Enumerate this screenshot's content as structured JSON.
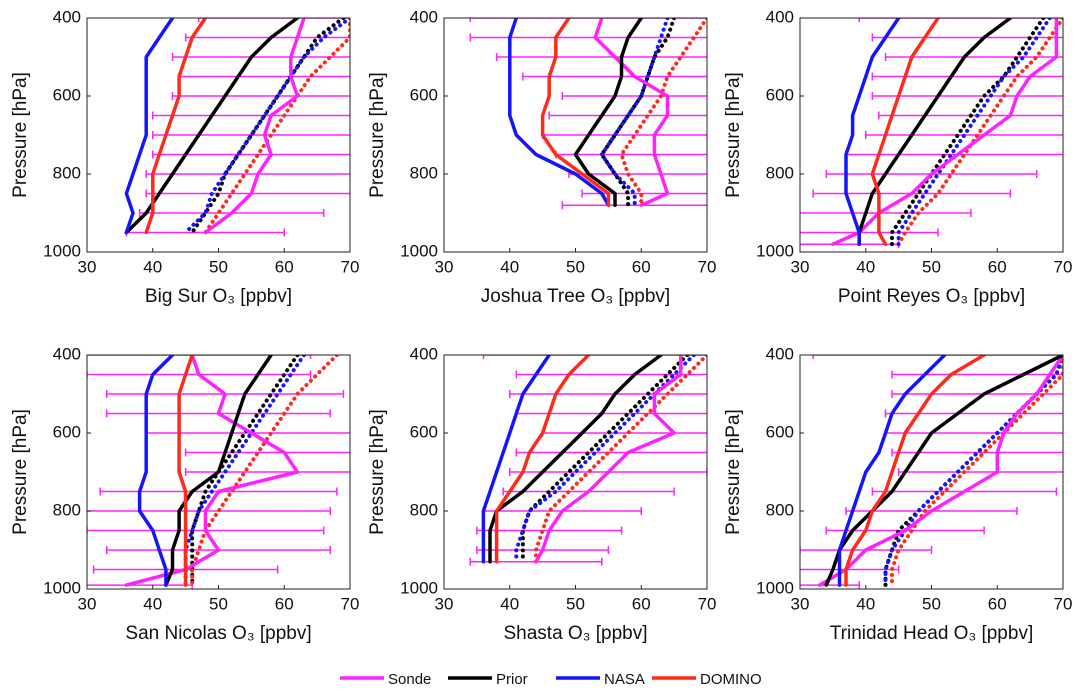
{
  "chart_data": [
    {
      "type": "line",
      "xlabel": "Big Sur O₃ [ppbv]",
      "ylabel": "Pressure [hPa]",
      "xlim": [
        30,
        70
      ],
      "ylim": [
        1000,
        400
      ],
      "xticks": [
        30,
        40,
        50,
        60,
        70
      ],
      "yticks": [
        400,
        600,
        800,
        1000
      ],
      "pressure": [
        400,
        450,
        500,
        550,
        600,
        650,
        700,
        750,
        800,
        850,
        900,
        950
      ],
      "series": [
        {
          "name": "Sonde",
          "color": "#ff22ff",
          "values": [
            63,
            62,
            61,
            61,
            62,
            58,
            57,
            58,
            56,
            55,
            52,
            48
          ],
          "errors": [
            16,
            17,
            18,
            17,
            19,
            18,
            17,
            18,
            17,
            16,
            14,
            12
          ]
        },
        {
          "name": "Prior",
          "color": "#000000",
          "values": [
            62,
            58,
            55,
            53,
            51,
            49,
            47,
            45,
            43,
            41,
            39,
            36
          ]
        },
        {
          "name": "NASA",
          "color": "#1414ff",
          "values": [
            43,
            41,
            39,
            39,
            39,
            39,
            39,
            38,
            37,
            36,
            37,
            36
          ]
        },
        {
          "name": "DOMINO",
          "color": "#ff2a1a",
          "values": [
            48,
            46,
            45,
            44,
            44,
            43,
            42,
            41,
            40,
            40,
            40,
            39
          ]
        },
        {
          "color": "#000000",
          "style": "dotted",
          "values": [
            69,
            65,
            63,
            61,
            59,
            57,
            55,
            53,
            51,
            50,
            48,
            46
          ]
        },
        {
          "color": "#1414ff",
          "style": "dotted",
          "values": [
            70,
            66,
            63,
            61,
            59,
            57,
            55,
            53,
            51,
            49,
            48,
            45
          ]
        },
        {
          "color": "#ff2a1a",
          "style": "dotted",
          "values": [
            70,
            70,
            67,
            64,
            62,
            60,
            58,
            56,
            54,
            52,
            50,
            48
          ]
        }
      ]
    },
    {
      "type": "line",
      "xlabel": "Joshua Tree O₃ [ppbv]",
      "ylabel": "Pressure [hPa]",
      "xlim": [
        30,
        70
      ],
      "ylim": [
        1000,
        400
      ],
      "xticks": [
        30,
        40,
        50,
        60,
        70
      ],
      "yticks": [
        400,
        600,
        800,
        1000
      ],
      "pressure": [
        400,
        450,
        500,
        550,
        600,
        650,
        700,
        750,
        800,
        850,
        880
      ],
      "series": [
        {
          "color": "#ff22ff",
          "values": [
            54,
            53,
            56,
            59,
            64,
            64,
            62,
            62,
            63,
            64,
            60
          ],
          "errors": [
            20,
            19,
            18,
            17,
            16,
            18,
            17,
            15,
            14,
            13,
            12
          ]
        },
        {
          "color": "#000000",
          "values": [
            60,
            58,
            57,
            57,
            56,
            54,
            52,
            50,
            52,
            56,
            56
          ]
        },
        {
          "color": "#1414ff",
          "values": [
            41,
            40,
            40,
            40,
            40,
            40,
            41,
            44,
            50,
            54,
            55
          ]
        },
        {
          "color": "#ff2a1a",
          "values": [
            49,
            47,
            47,
            46,
            46,
            45,
            45,
            47,
            51,
            55,
            55
          ]
        },
        {
          "color": "#000000",
          "style": "dotted",
          "values": [
            65,
            64,
            62,
            61,
            60,
            58,
            56,
            54,
            56,
            58,
            58
          ]
        },
        {
          "color": "#1414ff",
          "style": "dotted",
          "values": [
            64,
            63,
            62,
            61,
            60,
            58,
            56,
            54,
            56,
            59,
            59
          ]
        },
        {
          "color": "#ff2a1a",
          "style": "dotted",
          "values": [
            70,
            68,
            66,
            64,
            63,
            61,
            59,
            57,
            58,
            60,
            60
          ]
        }
      ]
    },
    {
      "type": "line",
      "xlabel": "Point Reyes O₃ [ppbv]",
      "ylabel": "Pressure [hPa]",
      "xlim": [
        30,
        70
      ],
      "ylim": [
        1000,
        400
      ],
      "xticks": [
        30,
        40,
        50,
        60,
        70
      ],
      "yticks": [
        400,
        600,
        800,
        1000
      ],
      "pressure": [
        400,
        450,
        500,
        550,
        600,
        650,
        700,
        750,
        800,
        850,
        900,
        950,
        980
      ],
      "series": [
        {
          "color": "#ff22ff",
          "values": [
            69,
            69,
            69,
            65,
            63,
            62,
            58,
            54,
            50,
            47,
            42,
            39,
            35
          ],
          "errors": [
            30,
            28,
            26,
            24,
            22,
            20,
            18,
            17,
            16,
            15,
            14,
            12,
            10
          ]
        },
        {
          "color": "#000000",
          "values": [
            62,
            58,
            55,
            53,
            51,
            49,
            47,
            45,
            43,
            41,
            40,
            39,
            39
          ]
        },
        {
          "color": "#1414ff",
          "values": [
            45,
            43,
            41,
            40,
            39,
            38,
            38,
            37,
            37,
            37,
            38,
            39,
            39
          ]
        },
        {
          "color": "#ff2a1a",
          "values": [
            51,
            49,
            47,
            46,
            45,
            44,
            43,
            42,
            41,
            42,
            42,
            42,
            43
          ]
        },
        {
          "color": "#000000",
          "style": "dotted",
          "values": [
            67,
            65,
            63,
            61,
            58,
            56,
            54,
            52,
            50,
            48,
            46,
            44,
            44
          ]
        },
        {
          "color": "#1414ff",
          "style": "dotted",
          "values": [
            68,
            66,
            64,
            61,
            59,
            57,
            55,
            53,
            51,
            49,
            47,
            45,
            45
          ]
        },
        {
          "color": "#ff2a1a",
          "style": "dotted",
          "values": [
            70,
            68,
            66,
            63,
            61,
            59,
            57,
            55,
            53,
            51,
            48,
            46,
            45
          ]
        }
      ]
    },
    {
      "type": "line",
      "xlabel": "San Nicolas O₃ [ppbv]",
      "ylabel": "Pressure [hPa]",
      "xlim": [
        30,
        70
      ],
      "ylim": [
        1000,
        400
      ],
      "xticks": [
        30,
        40,
        50,
        60,
        70
      ],
      "yticks": [
        400,
        600,
        800,
        1000
      ],
      "pressure": [
        400,
        450,
        500,
        550,
        600,
        650,
        700,
        750,
        800,
        850,
        900,
        950,
        990
      ],
      "series": [
        {
          "color": "#ff22ff",
          "values": [
            46,
            47,
            51,
            50,
            55,
            60,
            62,
            50,
            48,
            48,
            50,
            45,
            36
          ],
          "errors": [
            18,
            17,
            18,
            17,
            16,
            15,
            17,
            18,
            19,
            18,
            17,
            14,
            10
          ]
        },
        {
          "color": "#000000",
          "values": [
            58,
            56,
            54,
            53,
            52,
            51,
            50,
            46,
            44,
            44,
            43,
            43,
            42
          ]
        },
        {
          "color": "#1414ff",
          "values": [
            43,
            40,
            39,
            39,
            39,
            39,
            39,
            38,
            38,
            40,
            41,
            42,
            42
          ]
        },
        {
          "color": "#ff2a1a",
          "values": [
            46,
            45,
            44,
            44,
            44,
            44,
            44,
            45,
            45,
            45,
            45,
            45,
            45
          ]
        },
        {
          "color": "#000000",
          "style": "dotted",
          "values": [
            62,
            60,
            58,
            56,
            54,
            52,
            50,
            48,
            47,
            46,
            46,
            46,
            46
          ]
        },
        {
          "color": "#1414ff",
          "style": "dotted",
          "values": [
            63,
            61,
            59,
            57,
            55,
            53,
            51,
            49,
            47,
            46,
            45,
            45,
            45
          ]
        },
        {
          "color": "#ff2a1a",
          "style": "dotted",
          "values": [
            68,
            65,
            62,
            60,
            58,
            56,
            54,
            52,
            50,
            48,
            47,
            46,
            46
          ]
        }
      ]
    },
    {
      "type": "line",
      "xlabel": "Shasta O₃ [ppbv]",
      "ylabel": "Pressure [hPa]",
      "xlim": [
        30,
        70
      ],
      "ylim": [
        1000,
        400
      ],
      "xticks": [
        30,
        40,
        50,
        60,
        70
      ],
      "yticks": [
        400,
        600,
        800,
        1000
      ],
      "pressure": [
        400,
        450,
        500,
        550,
        600,
        650,
        700,
        750,
        800,
        850,
        900,
        930
      ],
      "series": [
        {
          "color": "#ff22ff",
          "values": [
            66,
            66,
            62,
            62,
            65,
            58,
            55,
            52,
            48,
            46,
            45,
            44
          ],
          "errors": [
            30,
            25,
            22,
            21,
            20,
            17,
            15,
            13,
            12,
            11,
            10,
            10
          ]
        },
        {
          "color": "#000000",
          "values": [
            63,
            59,
            56,
            54,
            51,
            48,
            45,
            42,
            38,
            37,
            37,
            37
          ]
        },
        {
          "color": "#1414ff",
          "values": [
            46,
            44,
            42,
            41,
            40,
            39,
            38,
            37,
            36,
            36,
            36,
            36
          ]
        },
        {
          "color": "#ff2a1a",
          "values": [
            52,
            49,
            47,
            46,
            45,
            43,
            42,
            40,
            38,
            38,
            38,
            38
          ]
        },
        {
          "color": "#000000",
          "style": "dotted",
          "values": [
            67,
            64,
            61,
            58,
            55,
            52,
            49,
            46,
            43,
            42,
            42,
            42
          ]
        },
        {
          "color": "#1414ff",
          "style": "dotted",
          "values": [
            68,
            65,
            62,
            59,
            56,
            53,
            50,
            47,
            43,
            42,
            41,
            41
          ]
        },
        {
          "color": "#ff2a1a",
          "style": "dotted",
          "values": [
            70,
            67,
            64,
            61,
            58,
            55,
            52,
            49,
            46,
            45,
            44,
            44
          ]
        }
      ]
    },
    {
      "type": "line",
      "xlabel": "Trinidad Head O₃ [ppbv]",
      "ylabel": "Pressure [hPa]",
      "xlim": [
        30,
        70
      ],
      "ylim": [
        1000,
        400
      ],
      "xticks": [
        30,
        40,
        50,
        60,
        70
      ],
      "yticks": [
        400,
        600,
        800,
        1000
      ],
      "pressure": [
        400,
        450,
        500,
        550,
        600,
        650,
        700,
        750,
        800,
        850,
        900,
        950,
        990
      ],
      "series": [
        {
          "color": "#ff22ff",
          "values": [
            70,
            68,
            66,
            63,
            61,
            60,
            60,
            55,
            50,
            46,
            40,
            37,
            33
          ],
          "errors": [
            38,
            24,
            22,
            20,
            18,
            16,
            15,
            14,
            13,
            12,
            10,
            8,
            6
          ]
        },
        {
          "color": "#000000",
          "values": [
            70,
            64,
            58,
            54,
            50,
            48,
            46,
            44,
            41,
            38,
            36,
            35,
            34
          ]
        },
        {
          "color": "#1414ff",
          "values": [
            52,
            49,
            46,
            44,
            43,
            42,
            40,
            39,
            38,
            37,
            36,
            36,
            36
          ]
        },
        {
          "color": "#ff2a1a",
          "values": [
            58,
            53,
            50,
            48,
            46,
            45,
            44,
            43,
            41,
            40,
            38,
            37,
            37
          ]
        },
        {
          "color": "#000000",
          "style": "dotted",
          "values": [
            70,
            69,
            66,
            63,
            60,
            57,
            54,
            51,
            48,
            45,
            44,
            43,
            43
          ]
        },
        {
          "color": "#1414ff",
          "style": "dotted",
          "values": [
            70,
            69,
            66,
            63,
            60,
            57,
            54,
            51,
            48,
            46,
            44,
            43,
            43
          ]
        },
        {
          "color": "#ff2a1a",
          "style": "dotted",
          "values": [
            70,
            70,
            67,
            64,
            61,
            58,
            55,
            52,
            49,
            47,
            45,
            44,
            44
          ]
        }
      ]
    }
  ]
}
